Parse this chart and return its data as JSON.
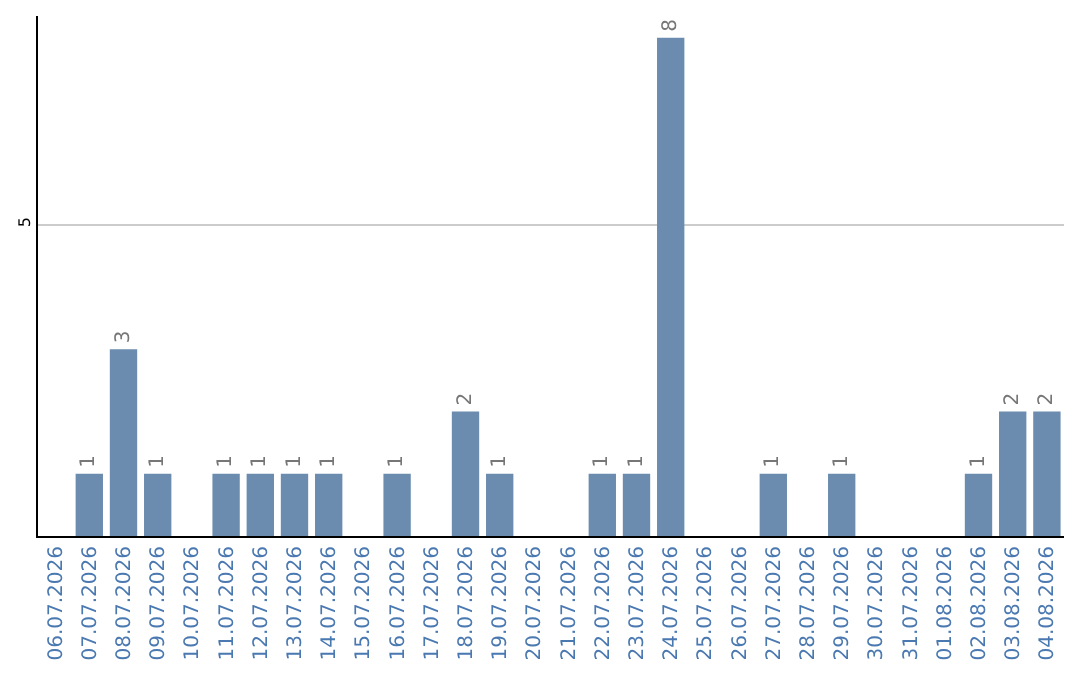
{
  "chart_data": {
    "type": "bar",
    "categories": [
      "06.07.2026",
      "07.07.2026",
      "08.07.2026",
      "09.07.2026",
      "10.07.2026",
      "11.07.2026",
      "12.07.2026",
      "13.07.2026",
      "14.07.2026",
      "15.07.2026",
      "16.07.2026",
      "17.07.2026",
      "18.07.2026",
      "19.07.2026",
      "20.07.2026",
      "21.07.2026",
      "22.07.2026",
      "23.07.2026",
      "24.07.2026",
      "25.07.2026",
      "26.07.2026",
      "27.07.2026",
      "28.07.2026",
      "29.07.2026",
      "30.07.2026",
      "31.07.2026",
      "01.08.2026",
      "02.08.2026",
      "03.08.2026",
      "04.08.2026"
    ],
    "values": [
      0,
      1,
      3,
      1,
      0,
      1,
      1,
      1,
      1,
      0,
      1,
      0,
      2,
      1,
      0,
      0,
      1,
      1,
      8,
      0,
      0,
      1,
      0,
      1,
      0,
      0,
      0,
      1,
      2,
      2
    ],
    "value_labels": [
      null,
      "1",
      "3",
      "1",
      null,
      "1",
      "1",
      "1",
      "1",
      null,
      "1",
      null,
      "2",
      "1",
      null,
      null,
      "1",
      "1",
      "8",
      null,
      null,
      "1",
      null,
      "1",
      null,
      null,
      null,
      "1",
      "2",
      "2"
    ],
    "color": "#6b8cae",
    "ylim": [
      0,
      8.35
    ],
    "yticks": [
      5
    ],
    "grid": "y",
    "legend": false
  }
}
